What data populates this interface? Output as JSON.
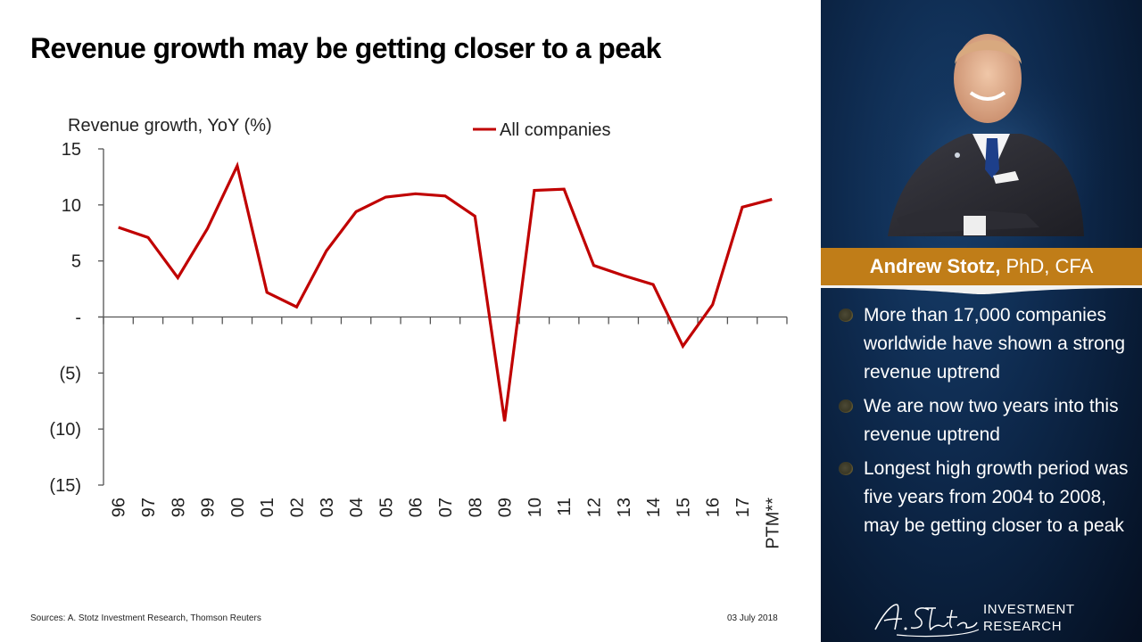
{
  "slide": {
    "title": "Revenue growth may be getting closer to a peak",
    "sources": "Sources: A. Stotz Investment Research, Thomson Reuters",
    "date": "03 July 2018"
  },
  "profile": {
    "name": "Andrew Stotz,",
    "credentials": " PhD, CFA",
    "bullets": [
      "More than 17,000 companies worldwide have shown a strong revenue uptrend",
      "We are now two years into this revenue uptrend",
      "Longest high growth period was five years from 2004 to 2008, may be getting closer to a peak"
    ],
    "logo_signature": "A. Stotz",
    "logo_line1": "INVESTMENT",
    "logo_line2": "RESEARCH",
    "colors": {
      "gold": "#c07d18",
      "navy": "#0e2a4e"
    }
  },
  "chart_data": {
    "type": "line",
    "title": "Revenue growth may be getting closer to a peak",
    "ylabel": "Revenue growth, YoY (%)",
    "xlabel": "",
    "ylim": [
      -15,
      15
    ],
    "yticks": [
      15,
      10,
      5,
      0,
      -5,
      -10,
      -15
    ],
    "ytick_labels": [
      "15",
      "10",
      "5",
      "-",
      "(5)",
      "(10)",
      "(15)"
    ],
    "categories": [
      "96",
      "97",
      "98",
      "99",
      "00",
      "01",
      "02",
      "03",
      "04",
      "05",
      "06",
      "07",
      "08",
      "09",
      "10",
      "11",
      "12",
      "13",
      "14",
      "15",
      "16",
      "17",
      "PTM**"
    ],
    "series": [
      {
        "name": "All companies",
        "color": "#c00000",
        "values": [
          8.0,
          7.1,
          3.5,
          7.9,
          13.5,
          2.2,
          0.9,
          5.9,
          9.4,
          10.7,
          11.0,
          10.8,
          9.0,
          -9.3,
          11.3,
          11.4,
          4.6,
          3.7,
          2.9,
          -2.6,
          1.1,
          9.8,
          10.5
        ]
      }
    ],
    "legend": "top-center",
    "grid": false
  }
}
